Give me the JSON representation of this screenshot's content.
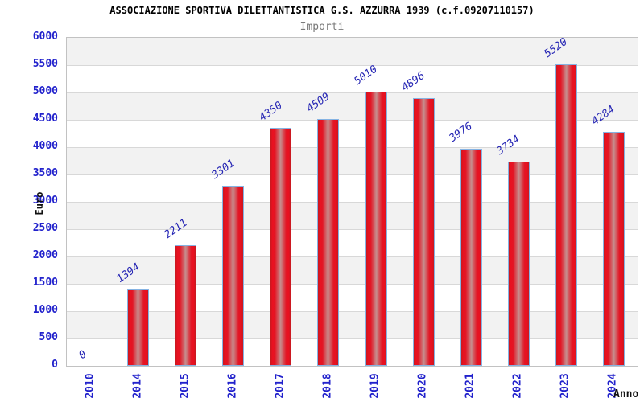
{
  "chart_data": {
    "type": "bar",
    "title": "ASSOCIAZIONE SPORTIVA DILETTANTISTICA G.S. AZZURRA 1939 (c.f.09207110157)",
    "subtitle": "Importi",
    "xlabel": "Anno",
    "ylabel": "Euro",
    "categories": [
      "2010",
      "2014",
      "2015",
      "2016",
      "2017",
      "2018",
      "2019",
      "2020",
      "2021",
      "2022",
      "2023",
      "2024"
    ],
    "values": [
      0,
      1394,
      2211,
      3301,
      4350,
      4509,
      5010,
      4896,
      3976,
      3734,
      5520,
      4284
    ],
    "ylim": [
      0,
      6000
    ],
    "ytick_step": 500,
    "yticks": [
      0,
      500,
      1000,
      1500,
      2000,
      2500,
      3000,
      3500,
      4000,
      4500,
      5000,
      5500,
      6000
    ],
    "grid": "horizontal, alternating shaded bands",
    "legend": "none",
    "colors": {
      "bar_edge": "#c51a20",
      "bar_bright": "#ea1020",
      "bar_center_sheen": "#c68e8e",
      "bar_border": "#85b3e3",
      "axis_label_blue": "#2222cc",
      "value_label_blue": "#2525b4",
      "band_gray": "#f2f2f2",
      "gridline": "#d8d8d8",
      "subtitle_gray": "#7a7a7a"
    }
  }
}
